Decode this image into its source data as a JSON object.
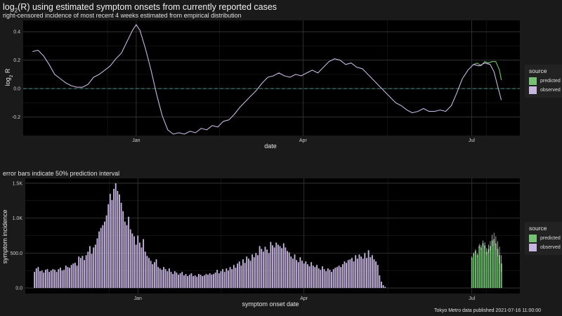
{
  "title_main": "log",
  "title_sub": "2",
  "title_rest": "(R) using estimated symptom onsets from currently reported cases",
  "subtitle_top": "right-censored incidence of most recent 4 weeks estimated from empirical distribution",
  "subtitle_bottom": "error bars indicate 50% prediction interval",
  "caption": "Tokyo Metro data published 2021-07-16 11:00:00",
  "colors": {
    "observed": "#c8b6e2",
    "predicted": "#72c472",
    "zero_line": "#3a8f7e",
    "panel": "#000000",
    "grid": "#3a3a3a"
  },
  "legend": {
    "title": "source",
    "items": [
      "predicted",
      "observed"
    ]
  },
  "chart_data": [
    {
      "type": "line",
      "xlabel": "date",
      "ylabel": "log",
      "ylabel_sub": "2",
      "ylabel_rest": " R",
      "x_range": [
        "2020-11-01",
        "2021-07-27"
      ],
      "ylim": [
        -0.33,
        0.48
      ],
      "x_ticks": [
        {
          "date": "2021-01-01",
          "label": "Jan"
        },
        {
          "date": "2021-04-01",
          "label": "Apr"
        },
        {
          "date": "2021-07-01",
          "label": "Jul"
        }
      ],
      "y_ticks": [
        -0.2,
        0.0,
        0.2,
        0.4
      ],
      "y_tick_labels": [
        "-0.2",
        "0.0",
        "0.2",
        "0.4"
      ],
      "zero_reference_line": 0,
      "grid": true,
      "legend_position": "right",
      "series": [
        {
          "name": "observed",
          "points": [
            [
              "2020-11-06",
              0.26
            ],
            [
              "2020-11-09",
              0.27
            ],
            [
              "2020-11-12",
              0.23
            ],
            [
              "2020-11-15",
              0.17
            ],
            [
              "2020-11-18",
              0.1
            ],
            [
              "2020-11-21",
              0.07
            ],
            [
              "2020-11-24",
              0.04
            ],
            [
              "2020-11-27",
              0.02
            ],
            [
              "2020-11-30",
              0.01
            ],
            [
              "2020-12-03",
              0.01
            ],
            [
              "2020-12-06",
              0.03
            ],
            [
              "2020-12-09",
              0.08
            ],
            [
              "2020-12-12",
              0.1
            ],
            [
              "2020-12-15",
              0.13
            ],
            [
              "2020-12-18",
              0.16
            ],
            [
              "2020-12-21",
              0.21
            ],
            [
              "2020-12-24",
              0.25
            ],
            [
              "2020-12-27",
              0.33
            ],
            [
              "2020-12-30",
              0.41
            ],
            [
              "2021-01-01",
              0.45
            ],
            [
              "2021-01-03",
              0.41
            ],
            [
              "2021-01-06",
              0.28
            ],
            [
              "2021-01-09",
              0.13
            ],
            [
              "2021-01-12",
              -0.04
            ],
            [
              "2021-01-15",
              -0.19
            ],
            [
              "2021-01-18",
              -0.29
            ],
            [
              "2021-01-21",
              -0.32
            ],
            [
              "2021-01-24",
              -0.31
            ],
            [
              "2021-01-27",
              -0.32
            ],
            [
              "2021-01-30",
              -0.3
            ],
            [
              "2021-02-02",
              -0.31
            ],
            [
              "2021-02-05",
              -0.28
            ],
            [
              "2021-02-08",
              -0.29
            ],
            [
              "2021-02-11",
              -0.26
            ],
            [
              "2021-02-14",
              -0.27
            ],
            [
              "2021-02-17",
              -0.23
            ],
            [
              "2021-02-20",
              -0.22
            ],
            [
              "2021-02-23",
              -0.18
            ],
            [
              "2021-02-26",
              -0.13
            ],
            [
              "2021-03-01",
              -0.09
            ],
            [
              "2021-03-04",
              -0.05
            ],
            [
              "2021-03-07",
              -0.01
            ],
            [
              "2021-03-10",
              0.04
            ],
            [
              "2021-03-13",
              0.08
            ],
            [
              "2021-03-16",
              0.09
            ],
            [
              "2021-03-19",
              0.11
            ],
            [
              "2021-03-22",
              0.09
            ],
            [
              "2021-03-25",
              0.08
            ],
            [
              "2021-03-28",
              0.1
            ],
            [
              "2021-03-31",
              0.09
            ],
            [
              "2021-04-03",
              0.11
            ],
            [
              "2021-04-06",
              0.13
            ],
            [
              "2021-04-09",
              0.11
            ],
            [
              "2021-04-12",
              0.15
            ],
            [
              "2021-04-15",
              0.19
            ],
            [
              "2021-04-18",
              0.21
            ],
            [
              "2021-04-21",
              0.2
            ],
            [
              "2021-04-24",
              0.17
            ],
            [
              "2021-04-27",
              0.18
            ],
            [
              "2021-04-30",
              0.15
            ],
            [
              "2021-05-03",
              0.14
            ],
            [
              "2021-05-06",
              0.1
            ],
            [
              "2021-05-09",
              0.06
            ],
            [
              "2021-05-12",
              0.02
            ],
            [
              "2021-05-15",
              -0.02
            ],
            [
              "2021-05-18",
              -0.06
            ],
            [
              "2021-05-21",
              -0.1
            ],
            [
              "2021-05-24",
              -0.12
            ],
            [
              "2021-05-27",
              -0.15
            ],
            [
              "2021-05-30",
              -0.17
            ],
            [
              "2021-06-02",
              -0.16
            ],
            [
              "2021-06-05",
              -0.14
            ],
            [
              "2021-06-08",
              -0.16
            ],
            [
              "2021-06-11",
              -0.16
            ],
            [
              "2021-06-14",
              -0.15
            ],
            [
              "2021-06-17",
              -0.16
            ],
            [
              "2021-06-20",
              -0.12
            ],
            [
              "2021-06-23",
              -0.03
            ],
            [
              "2021-06-26",
              0.07
            ],
            [
              "2021-06-29",
              0.13
            ],
            [
              "2021-07-02",
              0.17
            ],
            [
              "2021-07-05",
              0.16
            ],
            [
              "2021-07-08",
              0.18
            ],
            [
              "2021-07-11",
              0.17
            ],
            [
              "2021-07-13",
              0.12
            ],
            [
              "2021-07-15",
              0.02
            ],
            [
              "2021-07-17",
              -0.08
            ]
          ]
        },
        {
          "name": "predicted",
          "points": [
            [
              "2021-07-02",
              0.17
            ],
            [
              "2021-07-04",
              0.18
            ],
            [
              "2021-07-06",
              0.16
            ],
            [
              "2021-07-08",
              0.19
            ],
            [
              "2021-07-10",
              0.18
            ],
            [
              "2021-07-12",
              0.19
            ],
            [
              "2021-07-14",
              0.19
            ],
            [
              "2021-07-16",
              0.13
            ],
            [
              "2021-07-17",
              0.06
            ]
          ]
        }
      ]
    },
    {
      "type": "bar",
      "xlabel": "symptom onset date",
      "ylabel": "symptom incidence",
      "x_range": [
        "2020-11-01",
        "2021-07-27"
      ],
      "ylim": [
        -80,
        1570
      ],
      "x_ticks": [
        {
          "date": "2021-01-01",
          "label": "Jan"
        },
        {
          "date": "2021-04-01",
          "label": "Apr"
        },
        {
          "date": "2021-07-01",
          "label": "Jul"
        }
      ],
      "y_ticks": [
        0,
        500,
        1000,
        1500
      ],
      "y_tick_labels": [
        "0.0",
        "500.0",
        "1.0K",
        "1.5K"
      ],
      "grid": true,
      "legend_position": "right",
      "start_date": "2020-11-06",
      "series": [
        {
          "name": "observed",
          "values": [
            230,
            280,
            300,
            240,
            250,
            220,
            260,
            270,
            230,
            250,
            270,
            260,
            230,
            270,
            290,
            250,
            260,
            320,
            300,
            290,
            330,
            350,
            360,
            320,
            450,
            430,
            460,
            400,
            470,
            520,
            600,
            490,
            580,
            620,
            710,
            810,
            860,
            900,
            950,
            1040,
            1200,
            1350,
            1260,
            1420,
            1500,
            1390,
            1340,
            1220,
            1100,
            950,
            900,
            1020,
            840,
            780,
            740,
            620,
            750,
            650,
            580,
            700,
            520,
            460,
            430,
            390,
            340,
            370,
            410,
            300,
            280,
            260,
            300,
            270,
            240,
            280,
            230,
            200,
            240,
            220,
            190,
            210,
            230,
            180,
            200,
            170,
            190,
            210,
            170,
            180,
            160,
            200,
            190,
            170,
            180,
            200,
            190,
            210,
            190,
            200,
            220,
            260,
            210,
            240,
            270,
            230,
            280,
            250,
            300,
            270,
            330,
            290,
            350,
            380,
            320,
            410,
            360,
            450,
            420,
            390,
            480,
            440,
            500,
            470,
            600,
            560,
            520,
            590,
            550,
            500,
            660,
            610,
            580,
            650,
            620,
            600,
            570,
            640,
            580,
            530,
            510,
            450,
            420,
            480,
            400,
            370,
            440,
            390,
            350,
            380,
            340,
            310,
            370,
            320,
            300,
            330,
            280,
            260,
            310,
            270,
            240,
            280,
            260,
            230,
            270,
            290,
            300,
            320,
            300,
            340,
            380,
            360,
            400,
            410,
            430,
            380,
            470,
            420,
            480,
            450,
            420,
            500,
            430,
            540,
            440,
            470,
            410,
            380,
            330,
            180,
            90,
            40,
            15
          ]
        },
        {
          "name": "predicted",
          "start_date": "2021-07-01",
          "values": [
            430,
            490,
            530,
            470,
            600,
            580,
            640,
            610,
            520,
            560,
            600,
            680,
            700,
            640,
            560,
            470,
            350
          ],
          "error_low": [
            410,
            470,
            505,
            445,
            570,
            545,
            600,
            565,
            470,
            500,
            530,
            600,
            610,
            540,
            450,
            350,
            230
          ],
          "error_high": [
            450,
            510,
            555,
            495,
            630,
            615,
            680,
            655,
            570,
            620,
            670,
            760,
            790,
            740,
            670,
            590,
            470
          ]
        }
      ]
    }
  ]
}
